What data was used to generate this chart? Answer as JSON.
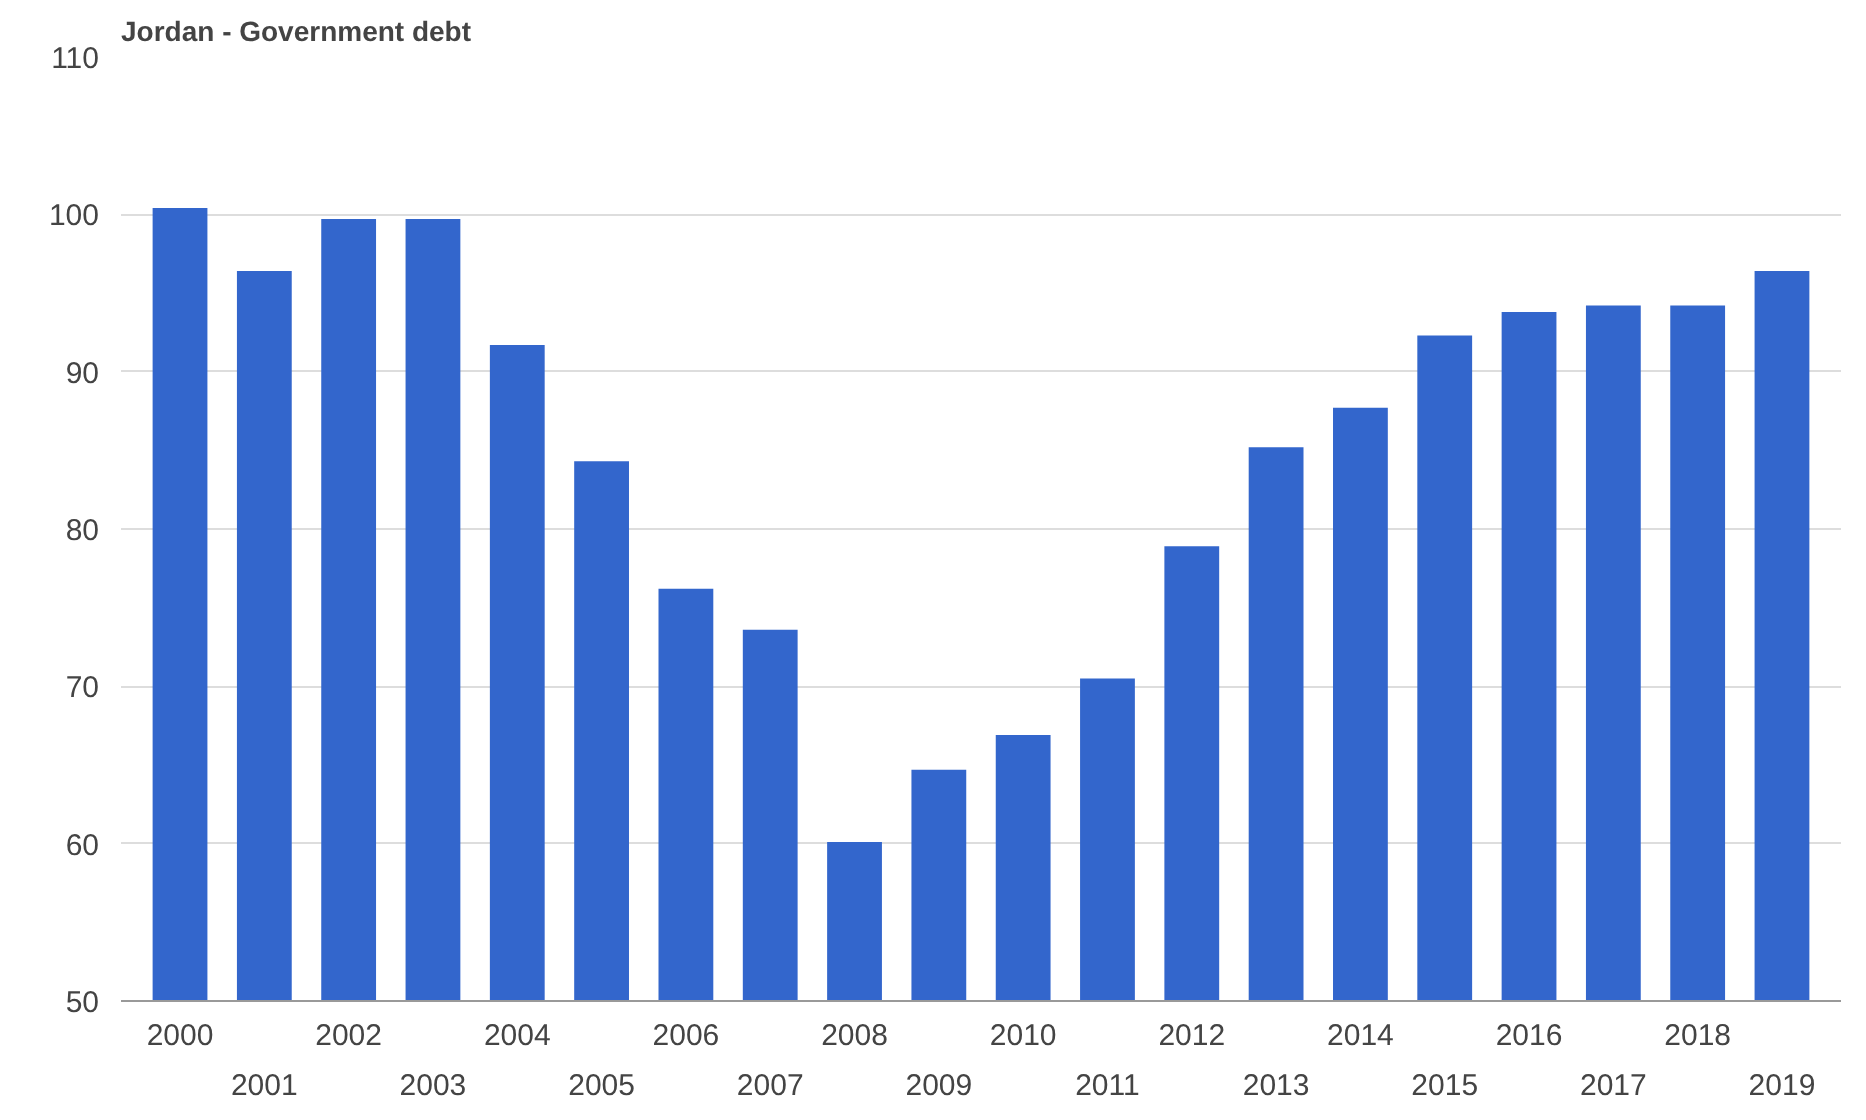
{
  "chart_data": {
    "type": "bar",
    "title": "Jordan - Government debt",
    "categories": [
      "2000",
      "2001",
      "2002",
      "2003",
      "2004",
      "2005",
      "2006",
      "2007",
      "2008",
      "2009",
      "2010",
      "2011",
      "2012",
      "2013",
      "2014",
      "2015",
      "2016",
      "2017",
      "2018",
      "2019"
    ],
    "series": [
      {
        "color": "#3366cc",
        "values": [
          100.4,
          96.4,
          99.7,
          99.7,
          91.7,
          84.3,
          76.2,
          73.6,
          60.1,
          64.7,
          66.9,
          70.5,
          78.9,
          85.2,
          87.7,
          92.3,
          93.8,
          94.2,
          94.2,
          96.4
        ]
      }
    ],
    "ylim": [
      50,
      110
    ],
    "yticks": [
      50,
      60,
      70,
      80,
      90,
      100,
      110
    ],
    "grid": "y"
  }
}
